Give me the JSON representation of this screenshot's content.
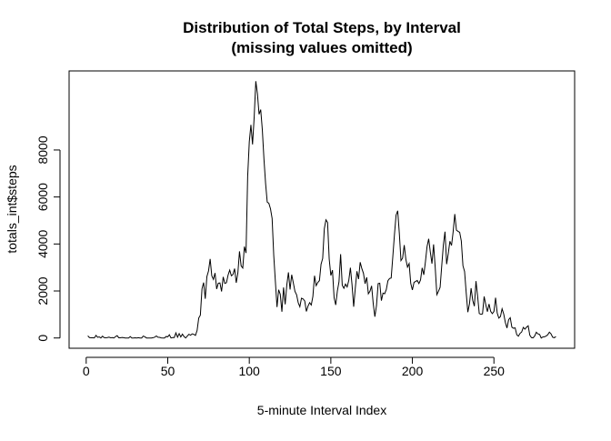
{
  "chart_data": {
    "type": "line",
    "title": [
      "Distribution of Total Steps, by Interval",
      "(missing values omitted)"
    ],
    "xlabel": "5-minute Interval Index",
    "ylabel": "totals_int$steps",
    "color": "#000000",
    "xlim": [
      -10.48,
      299.48
    ],
    "ylim": [
      -437,
      11364
    ],
    "xticks": [
      0,
      50,
      100,
      150,
      200,
      250
    ],
    "yticks": [
      0,
      2000,
      4000,
      6000,
      8000
    ],
    "x": [
      1,
      2,
      3,
      4,
      5,
      6,
      7,
      8,
      9,
      10,
      11,
      12,
      13,
      14,
      15,
      16,
      17,
      18,
      19,
      20,
      21,
      22,
      23,
      24,
      25,
      26,
      27,
      28,
      29,
      30,
      31,
      32,
      33,
      34,
      35,
      36,
      37,
      38,
      39,
      40,
      41,
      42,
      43,
      44,
      45,
      46,
      47,
      48,
      49,
      50,
      51,
      52,
      53,
      54,
      55,
      56,
      57,
      58,
      59,
      60,
      61,
      62,
      63,
      64,
      65,
      66,
      67,
      68,
      69,
      70,
      71,
      72,
      73,
      74,
      75,
      76,
      77,
      78,
      79,
      80,
      81,
      82,
      83,
      84,
      85,
      86,
      87,
      88,
      89,
      90,
      91,
      92,
      93,
      94,
      95,
      96,
      97,
      98,
      99,
      100,
      101,
      102,
      103,
      104,
      105,
      106,
      107,
      108,
      109,
      110,
      111,
      112,
      113,
      114,
      115,
      116,
      117,
      118,
      119,
      120,
      121,
      122,
      123,
      124,
      125,
      126,
      127,
      128,
      129,
      130,
      131,
      132,
      133,
      134,
      135,
      136,
      137,
      138,
      139,
      140,
      141,
      142,
      143,
      144,
      145,
      146,
      147,
      148,
      149,
      150,
      151,
      152,
      153,
      154,
      155,
      156,
      157,
      158,
      159,
      160,
      161,
      162,
      163,
      164,
      165,
      166,
      167,
      168,
      169,
      170,
      171,
      172,
      173,
      174,
      175,
      176,
      177,
      178,
      179,
      180,
      181,
      182,
      183,
      184,
      185,
      186,
      187,
      188,
      189,
      190,
      191,
      192,
      193,
      194,
      195,
      196,
      197,
      198,
      199,
      200,
      201,
      202,
      203,
      204,
      205,
      206,
      207,
      208,
      209,
      210,
      211,
      212,
      213,
      214,
      215,
      216,
      217,
      218,
      219,
      220,
      221,
      222,
      223,
      224,
      225,
      226,
      227,
      228,
      229,
      230,
      231,
      232,
      233,
      234,
      235,
      236,
      237,
      238,
      239,
      240,
      241,
      242,
      243,
      244,
      245,
      246,
      247,
      248,
      249,
      250,
      251,
      252,
      253,
      254,
      255,
      256,
      257,
      258,
      259,
      260,
      261,
      262,
      263,
      264,
      265,
      266,
      267,
      268,
      269,
      270,
      271,
      272,
      273,
      274,
      275,
      276,
      277,
      278,
      279,
      280,
      281,
      282,
      283,
      284,
      285,
      286,
      287,
      288
    ],
    "values": [
      91,
      18,
      7,
      8,
      4,
      111,
      28,
      46,
      0,
      78,
      16,
      7,
      17,
      36,
      8,
      18,
      0,
      59,
      97,
      9,
      9,
      20,
      14,
      0,
      0,
      0,
      60,
      0,
      0,
      7,
      0,
      12,
      0,
      0,
      82,
      50,
      0,
      0,
      0,
      0,
      11,
      33,
      86,
      31,
      26,
      4,
      0,
      0,
      63,
      50,
      136,
      0,
      18,
      19,
      218,
      35,
      185,
      44,
      165,
      59,
      0,
      83,
      159,
      119,
      176,
      157,
      111,
      321,
      849,
      972,
      2091,
      2358,
      1669,
      2611,
      2850,
      3363,
      2648,
      2495,
      2764,
      2085,
      2333,
      2341,
      1980,
      2599,
      2322,
      2352,
      2677,
      2889,
      2646,
      2702,
      2951,
      2349,
      2770,
      3686,
      3066,
      2976,
      3889,
      3615,
      6860,
      8349,
      9071,
      8236,
      9397,
      10927,
      10384,
      9517,
      9720,
      8852,
      7603,
      6574,
      5783,
      5730,
      5497,
      5086,
      3509,
      2397,
      1314,
      2054,
      1854,
      1116,
      2150,
      1430,
      2248,
      2791,
      2063,
      2692,
      2347,
      1983,
      1839,
      1502,
      1329,
      1693,
      1662,
      1573,
      1130,
      1354,
      1504,
      1403,
      1772,
      2649,
      2228,
      2364,
      2440,
      3137,
      3385,
      4648,
      5027,
      4917,
      3360,
      2659,
      2887,
      1718,
      1406,
      2000,
      2388,
      3566,
      2244,
      2114,
      2293,
      2172,
      2451,
      2991,
      2266,
      1332,
      2118,
      2838,
      2508,
      3223,
      2955,
      2754,
      2310,
      2581,
      1880,
      1990,
      2218,
      1458,
      907,
      1382,
      2312,
      2331,
      1591,
      1912,
      1881,
      2059,
      2436,
      2531,
      2551,
      3462,
      4394,
      5229,
      5412,
      4450,
      3293,
      3399,
      3951,
      3348,
      3016,
      3168,
      2325,
      2044,
      2367,
      2409,
      2449,
      2315,
      2471,
      2984,
      2688,
      3245,
      3892,
      4220,
      3654,
      3162,
      3980,
      2995,
      1843,
      1988,
      2156,
      3075,
      3959,
      4522,
      3141,
      3592,
      4118,
      3935,
      4523,
      5271,
      4589,
      4537,
      4498,
      4125,
      3076,
      2828,
      1925,
      1098,
      1452,
      2121,
      1601,
      1354,
      2420,
      1777,
      1040,
      1008,
      1025,
      1767,
      1421,
      1122,
      1447,
      1131,
      1036,
      1130,
      1712,
      1068,
      845,
      913,
      1243,
      1020,
      660,
      425,
      777,
      864,
      460,
      413,
      431,
      139,
      77,
      195,
      255,
      451,
      375,
      461,
      517,
      117,
      17,
      6,
      85,
      244,
      175,
      151,
      0,
      44,
      51,
      84,
      138,
      249,
      175,
      34,
      12,
      57
    ]
  }
}
